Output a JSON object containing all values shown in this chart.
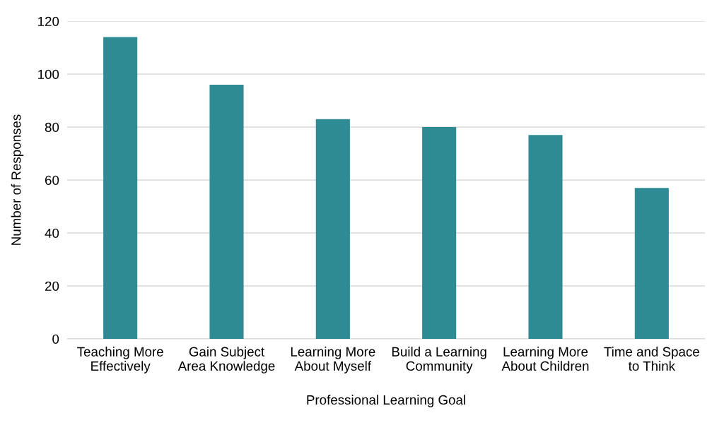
{
  "chart_data": {
    "type": "bar",
    "xlabel": "Professional Learning Goal",
    "ylabel": "Number of Responses",
    "categories": [
      "Teaching More\nEffectively",
      "Gain Subject\nArea Knowledge",
      "Learning More\nAbout Myself",
      "Build a Learning\nCommunity",
      "Learning More\nAbout Children",
      "Time and Space\nto Think"
    ],
    "values": [
      114,
      96,
      83,
      80,
      77,
      57
    ],
    "color": "#2e8b94",
    "ylim": [
      0,
      120
    ],
    "yticks": [
      0,
      20,
      40,
      60,
      80,
      100,
      120
    ],
    "grid": "y",
    "legend": false
  }
}
